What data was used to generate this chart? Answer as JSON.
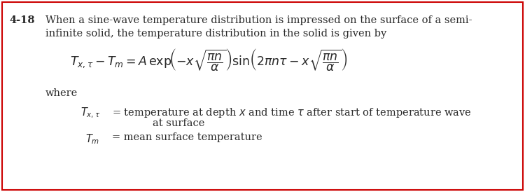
{
  "background_color": "#ffffff",
  "border_color": "#cc0000",
  "border_linewidth": 1.5,
  "problem_number": "4-18",
  "intro_line1": "When a sine-wave temperature distribution is impressed on the surface of a semi-",
  "intro_line2": "infinite solid, the temperature distribution in the solid is given by",
  "where_text": "where",
  "def1_rhs_line1": "= temperature at depth $x$ and time $\\tau$ after start of temperature wave",
  "def1_rhs_line2": "at surface",
  "def2_rhs": "= mean surface temperature",
  "text_color": "#2a2a2a",
  "font_size_body": 10.5,
  "font_size_eq": 12.5
}
